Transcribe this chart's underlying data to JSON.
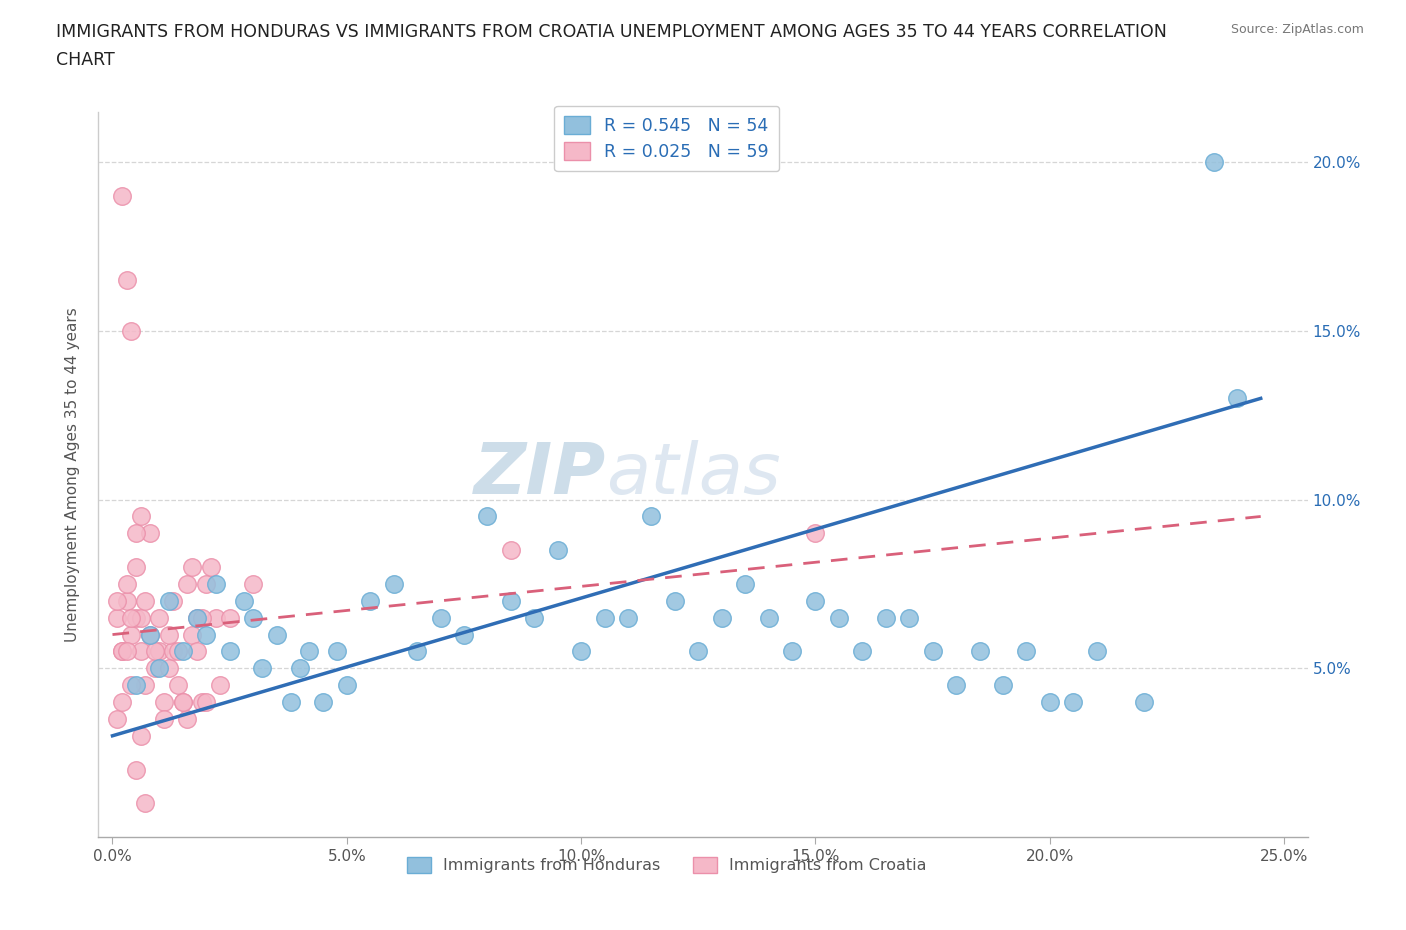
{
  "title_line1": "IMMIGRANTS FROM HONDURAS VS IMMIGRANTS FROM CROATIA UNEMPLOYMENT AMONG AGES 35 TO 44 YEARS CORRELATION",
  "title_line2": "CHART",
  "source": "Source: ZipAtlas.com",
  "ylabel": "Unemployment Among Ages 35 to 44 years",
  "xlim": [
    -0.003,
    0.255
  ],
  "ylim": [
    0.0,
    0.215
  ],
  "xticks": [
    0.0,
    0.05,
    0.1,
    0.15,
    0.2,
    0.25
  ],
  "xticklabels": [
    "0.0%",
    "5.0%",
    "10.0%",
    "15.0%",
    "20.0%",
    "25.0%"
  ],
  "ytick_positions": [
    0.05,
    0.1,
    0.15,
    0.2
  ],
  "yticklabels": [
    "5.0%",
    "10.0%",
    "15.0%",
    "20.0%"
  ],
  "honduras_color": "#92c0dd",
  "croatia_color": "#f5b8c8",
  "honduras_edge": "#6aadd5",
  "croatia_edge": "#eb90aa",
  "trend_blue": "#2f6db5",
  "trend_pink": "#d9607a",
  "R_honduras": 0.545,
  "N_honduras": 54,
  "R_croatia": 0.025,
  "N_croatia": 59,
  "background_color": "#ffffff",
  "grid_color": "#cccccc",
  "title_color": "#222222",
  "axis_label_color": "#555555",
  "legend_text_color": "#2a6db5",
  "right_tick_color": "#2a6db5",
  "watermark_color": "#d0dde8",
  "honduras_x": [
    0.005,
    0.008,
    0.01,
    0.012,
    0.015,
    0.018,
    0.02,
    0.022,
    0.025,
    0.028,
    0.03,
    0.032,
    0.035,
    0.038,
    0.04,
    0.042,
    0.045,
    0.048,
    0.05,
    0.055,
    0.06,
    0.065,
    0.07,
    0.075,
    0.08,
    0.085,
    0.09,
    0.095,
    0.1,
    0.105,
    0.11,
    0.115,
    0.12,
    0.125,
    0.13,
    0.135,
    0.14,
    0.145,
    0.15,
    0.155,
    0.16,
    0.165,
    0.17,
    0.175,
    0.18,
    0.185,
    0.19,
    0.195,
    0.2,
    0.205,
    0.21,
    0.22,
    0.235,
    0.24
  ],
  "honduras_y": [
    0.045,
    0.06,
    0.05,
    0.07,
    0.055,
    0.065,
    0.06,
    0.075,
    0.055,
    0.07,
    0.065,
    0.05,
    0.06,
    0.04,
    0.05,
    0.055,
    0.04,
    0.055,
    0.045,
    0.07,
    0.075,
    0.055,
    0.065,
    0.06,
    0.095,
    0.07,
    0.065,
    0.085,
    0.055,
    0.065,
    0.065,
    0.095,
    0.07,
    0.055,
    0.065,
    0.075,
    0.065,
    0.055,
    0.07,
    0.065,
    0.055,
    0.065,
    0.065,
    0.055,
    0.045,
    0.055,
    0.045,
    0.055,
    0.04,
    0.04,
    0.055,
    0.04,
    0.2,
    0.13
  ],
  "croatia_x": [
    0.001,
    0.002,
    0.003,
    0.004,
    0.005,
    0.006,
    0.007,
    0.008,
    0.009,
    0.01,
    0.011,
    0.012,
    0.013,
    0.014,
    0.015,
    0.016,
    0.017,
    0.018,
    0.019,
    0.02,
    0.021,
    0.022,
    0.023,
    0.001,
    0.002,
    0.003,
    0.004,
    0.005,
    0.006,
    0.007,
    0.008,
    0.009,
    0.01,
    0.011,
    0.012,
    0.013,
    0.014,
    0.015,
    0.016,
    0.017,
    0.018,
    0.019,
    0.02,
    0.001,
    0.002,
    0.003,
    0.004,
    0.005,
    0.006,
    0.007,
    0.002,
    0.003,
    0.004,
    0.005,
    0.006,
    0.025,
    0.03,
    0.085,
    0.15
  ],
  "croatia_y": [
    0.065,
    0.055,
    0.07,
    0.06,
    0.065,
    0.055,
    0.045,
    0.06,
    0.05,
    0.055,
    0.04,
    0.05,
    0.055,
    0.045,
    0.04,
    0.035,
    0.06,
    0.065,
    0.04,
    0.075,
    0.08,
    0.065,
    0.045,
    0.07,
    0.055,
    0.075,
    0.045,
    0.08,
    0.065,
    0.07,
    0.09,
    0.055,
    0.065,
    0.035,
    0.06,
    0.07,
    0.055,
    0.04,
    0.075,
    0.08,
    0.055,
    0.065,
    0.04,
    0.035,
    0.04,
    0.055,
    0.065,
    0.02,
    0.03,
    0.01,
    0.19,
    0.165,
    0.15,
    0.09,
    0.095,
    0.065,
    0.075,
    0.085,
    0.09
  ]
}
